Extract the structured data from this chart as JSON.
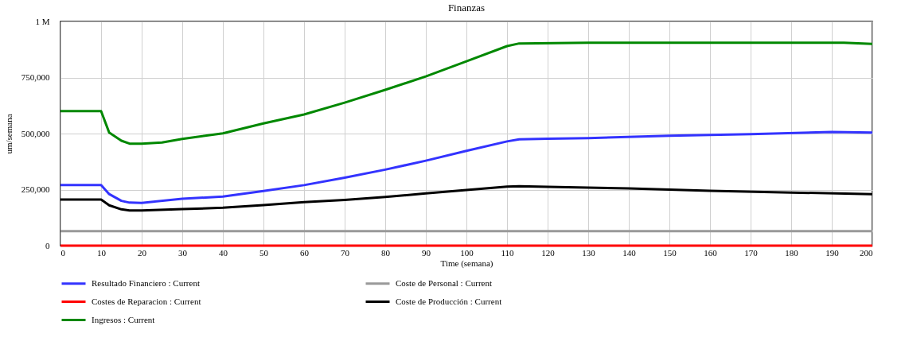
{
  "chart_data": {
    "type": "line",
    "title": "Finanzas",
    "xlabel": "Time (semana)",
    "ylabel": "um/semana",
    "xlim": [
      0,
      200
    ],
    "xticks": [
      0,
      10,
      20,
      30,
      40,
      50,
      60,
      70,
      80,
      90,
      100,
      110,
      120,
      130,
      140,
      150,
      160,
      170,
      180,
      190,
      200
    ],
    "ylim": [
      0,
      1000000
    ],
    "yticks": [
      {
        "value": 0,
        "label": "0"
      },
      {
        "value": 250000,
        "label": "250,000"
      },
      {
        "value": 500000,
        "label": "500,000"
      },
      {
        "value": 750000,
        "label": "750,000"
      },
      {
        "value": 1000000,
        "label": "1 M"
      }
    ],
    "grid": true,
    "legend": "bottom",
    "line_style": "solid",
    "series": [
      {
        "name": "Resultado Financiero : Current",
        "color": "#3333ff",
        "x": [
          0,
          10,
          12,
          15,
          17,
          20,
          30,
          40,
          50,
          60,
          70,
          80,
          90,
          100,
          110,
          113,
          120,
          130,
          150,
          170,
          190,
          200
        ],
        "values": [
          270000,
          270000,
          230000,
          200000,
          192000,
          191000,
          209000,
          219000,
          244000,
          270000,
          303000,
          339000,
          379000,
          423000,
          465000,
          474000,
          477000,
          480000,
          490000,
          497000,
          507000,
          504000
        ]
      },
      {
        "name": "Coste de Personal : Current",
        "color": "#999999",
        "x": [
          0,
          200
        ],
        "values": [
          65000,
          65000
        ]
      },
      {
        "name": "Costes de Reparacion : Current",
        "color": "#ff0000",
        "x": [
          0,
          200
        ],
        "values": [
          0,
          0
        ]
      },
      {
        "name": "Coste de Producción : Current",
        "color": "#000000",
        "x": [
          0,
          10,
          12,
          15,
          17,
          20,
          30,
          40,
          50,
          60,
          70,
          80,
          90,
          100,
          110,
          113,
          120,
          140,
          160,
          180,
          200
        ],
        "values": [
          206000,
          206000,
          180000,
          162000,
          157000,
          157000,
          163000,
          169000,
          181000,
          194000,
          204000,
          217000,
          233000,
          248000,
          263000,
          265000,
          262000,
          255000,
          245000,
          237000,
          230000
        ]
      },
      {
        "name": "Ingresos : Current",
        "color": "#008800",
        "x": [
          0,
          10,
          12,
          15,
          17,
          20,
          25,
          30,
          40,
          50,
          60,
          70,
          80,
          90,
          100,
          110,
          113,
          130,
          193,
          200
        ],
        "values": [
          600000,
          600000,
          504000,
          468000,
          455000,
          455000,
          460000,
          476000,
          501000,
          545000,
          585000,
          638000,
          695000,
          755000,
          822000,
          890000,
          902000,
          905000,
          905000,
          900000
        ]
      }
    ]
  }
}
